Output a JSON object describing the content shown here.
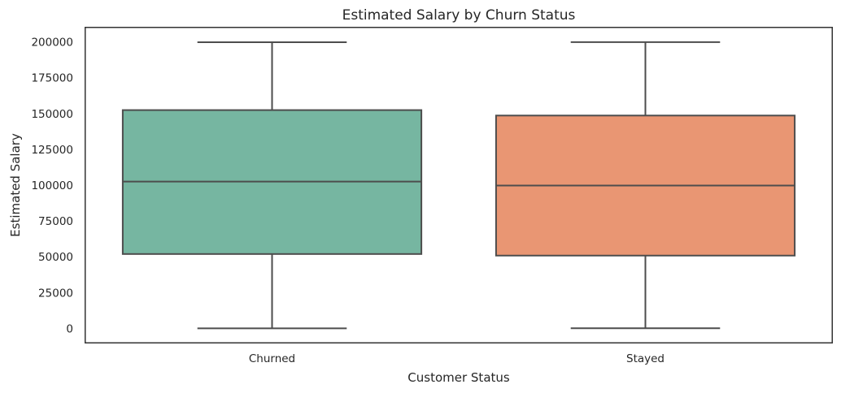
{
  "chart_data": {
    "type": "box",
    "title": "Estimated Salary by Churn Status",
    "xlabel": "Customer Status",
    "ylabel": "Estimated Salary",
    "ylim": [
      -10000,
      210000
    ],
    "yticks": [
      0,
      25000,
      50000,
      75000,
      100000,
      125000,
      150000,
      175000,
      200000
    ],
    "ytick_labels": [
      "0",
      "25000",
      "50000",
      "75000",
      "100000",
      "125000",
      "150000",
      "175000",
      "200000"
    ],
    "grid": false,
    "categories": [
      "Churned",
      "Stayed"
    ],
    "boxes": [
      {
        "category": "Churned",
        "min": 12,
        "q1": 51900,
        "median": 102500,
        "q3": 152400,
        "max": 199800,
        "color": "#76b6a1"
      },
      {
        "category": "Stayed",
        "min": 90,
        "q1": 50800,
        "median": 99700,
        "q3": 148600,
        "max": 199900,
        "color": "#e99673"
      }
    ]
  }
}
